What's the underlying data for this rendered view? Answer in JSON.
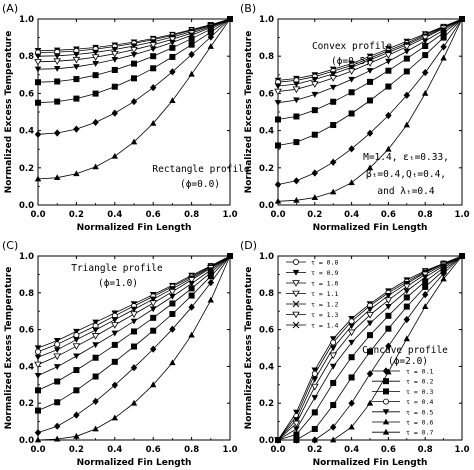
{
  "chart_data": [
    {
      "type": "line",
      "panel": "(A)",
      "xlabel": "Normalized Fin Length",
      "ylabel": "Normalized Excess Temperature",
      "xlim": [
        0,
        1
      ],
      "ylim": [
        0,
        1
      ],
      "ticks": [
        "0.0",
        "0.2",
        "0.4",
        "0.6",
        "0.8",
        "1.0"
      ],
      "annotations": [
        "Rectangle profile",
        "(ϕ=0.0)"
      ],
      "x": [
        0,
        0.1,
        0.2,
        0.3,
        0.4,
        0.5,
        0.6,
        0.7,
        0.8,
        0.9,
        1.0
      ],
      "series": [
        {
          "tau": 0.1,
          "values": [
            0.83,
            0.832,
            0.838,
            0.847,
            0.86,
            0.876,
            0.895,
            0.917,
            0.943,
            0.97,
            1.0
          ]
        },
        {
          "tau": 0.2,
          "values": [
            0.82,
            0.822,
            0.828,
            0.838,
            0.852,
            0.869,
            0.889,
            0.912,
            0.939,
            0.968,
            1.0
          ]
        },
        {
          "tau": 0.3,
          "values": [
            0.8,
            0.802,
            0.809,
            0.821,
            0.836,
            0.855,
            0.877,
            0.903,
            0.933,
            0.965,
            1.0
          ]
        },
        {
          "tau": 0.4,
          "values": [
            0.77,
            0.773,
            0.781,
            0.795,
            0.813,
            0.835,
            0.861,
            0.891,
            0.924,
            0.96,
            1.0
          ]
        },
        {
          "tau": 0.5,
          "values": [
            0.73,
            0.733,
            0.743,
            0.76,
            0.782,
            0.808,
            0.839,
            0.874,
            0.913,
            0.955,
            1.0
          ]
        },
        {
          "tau": 0.6,
          "values": [
            0.66,
            0.664,
            0.677,
            0.698,
            0.726,
            0.76,
            0.8,
            0.845,
            0.894,
            0.945,
            1.0
          ]
        },
        {
          "tau": 0.7,
          "values": [
            0.55,
            0.556,
            0.572,
            0.599,
            0.636,
            0.681,
            0.735,
            0.796,
            0.862,
            0.929,
            1.0
          ]
        },
        {
          "tau": 0.8,
          "values": [
            0.38,
            0.387,
            0.408,
            0.444,
            0.494,
            0.556,
            0.631,
            0.716,
            0.809,
            0.903,
            1.0
          ]
        },
        {
          "tau": 0.9,
          "values": [
            0.14,
            0.147,
            0.168,
            0.205,
            0.262,
            0.339,
            0.439,
            0.561,
            0.703,
            0.852,
            1.0
          ]
        }
      ]
    },
    {
      "type": "line",
      "panel": "(B)",
      "xlabel": "Normalized Fin Length",
      "ylabel": "Normalized Excess Temperature",
      "xlim": [
        0,
        1
      ],
      "ylim": [
        0,
        1
      ],
      "ticks": [
        "0.0",
        "0.2",
        "0.4",
        "0.6",
        "0.8",
        "1.0"
      ],
      "annotations": [
        "Convex profile",
        "(ϕ=0.5)",
        "M=1.4, εₜ=0.33,",
        "βₜ=0.4,Qₜ=0.4,",
        "and λₜ=0.4"
      ],
      "x": [
        0,
        0.1,
        0.2,
        0.3,
        0.4,
        0.5,
        0.6,
        0.7,
        0.8,
        0.9,
        1.0
      ],
      "series": [
        {
          "tau": 0.1,
          "values": [
            0.67,
            0.68,
            0.7,
            0.73,
            0.76,
            0.8,
            0.84,
            0.88,
            0.92,
            0.96,
            1.0
          ]
        },
        {
          "tau": 0.2,
          "values": [
            0.66,
            0.67,
            0.69,
            0.72,
            0.75,
            0.79,
            0.83,
            0.87,
            0.915,
            0.957,
            1.0
          ]
        },
        {
          "tau": 0.3,
          "values": [
            0.64,
            0.65,
            0.675,
            0.705,
            0.74,
            0.78,
            0.82,
            0.862,
            0.908,
            0.953,
            1.0
          ]
        },
        {
          "tau": 0.4,
          "values": [
            0.61,
            0.622,
            0.65,
            0.683,
            0.72,
            0.763,
            0.806,
            0.851,
            0.9,
            0.95,
            1.0
          ]
        },
        {
          "tau": 0.5,
          "values": [
            0.55,
            0.564,
            0.594,
            0.632,
            0.675,
            0.722,
            0.772,
            0.826,
            0.882,
            0.94,
            1.0
          ]
        },
        {
          "tau": 0.6,
          "values": [
            0.46,
            0.476,
            0.51,
            0.555,
            0.606,
            0.662,
            0.722,
            0.787,
            0.855,
            0.926,
            1.0
          ]
        },
        {
          "tau": 0.7,
          "values": [
            0.32,
            0.338,
            0.378,
            0.43,
            0.492,
            0.562,
            0.637,
            0.718,
            0.806,
            0.9,
            1.0
          ]
        },
        {
          "tau": 0.8,
          "values": [
            0.11,
            0.13,
            0.172,
            0.23,
            0.302,
            0.386,
            0.481,
            0.59,
            0.712,
            0.85,
            1.0
          ]
        },
        {
          "tau": 0.9,
          "values": [
            0.02,
            0.025,
            0.04,
            0.07,
            0.12,
            0.2,
            0.3,
            0.43,
            0.6,
            0.79,
            1.0
          ]
        }
      ]
    },
    {
      "type": "line",
      "panel": "(C)",
      "xlabel": "Normalized Fin Length",
      "ylabel": "Normalized Excess Temperature",
      "xlim": [
        0,
        1
      ],
      "ylim": [
        0,
        1
      ],
      "ticks": [
        "0.0",
        "0.2",
        "0.4",
        "0.6",
        "0.8",
        "1.0"
      ],
      "annotations": [
        "Triangle profile",
        "(ϕ=1.0)"
      ],
      "x": [
        0,
        0.1,
        0.2,
        0.3,
        0.4,
        0.5,
        0.6,
        0.7,
        0.8,
        0.9,
        1.0
      ],
      "series": [
        {
          "tau": 0.1,
          "values": [
            0.5,
            0.54,
            0.59,
            0.64,
            0.69,
            0.74,
            0.79,
            0.84,
            0.895,
            0.947,
            1.0
          ]
        },
        {
          "tau": 0.2,
          "values": [
            0.48,
            0.52,
            0.57,
            0.62,
            0.675,
            0.728,
            0.78,
            0.833,
            0.888,
            0.944,
            1.0
          ]
        },
        {
          "tau": 0.3,
          "values": [
            0.45,
            0.49,
            0.545,
            0.598,
            0.654,
            0.71,
            0.765,
            0.822,
            0.88,
            0.94,
            1.0
          ]
        },
        {
          "tau": 0.4,
          "values": [
            0.41,
            0.455,
            0.51,
            0.566,
            0.625,
            0.684,
            0.744,
            0.806,
            0.87,
            0.935,
            1.0
          ]
        },
        {
          "tau": 0.5,
          "values": [
            0.35,
            0.398,
            0.456,
            0.517,
            0.58,
            0.645,
            0.712,
            0.78,
            0.85,
            0.924,
            1.0
          ]
        },
        {
          "tau": 0.6,
          "values": [
            0.27,
            0.318,
            0.38,
            0.447,
            0.517,
            0.59,
            0.664,
            0.742,
            0.824,
            0.91,
            1.0
          ]
        },
        {
          "tau": 0.7,
          "values": [
            0.16,
            0.205,
            0.27,
            0.345,
            0.425,
            0.508,
            0.594,
            0.685,
            0.785,
            0.89,
            1.0
          ]
        },
        {
          "tau": 0.8,
          "values": [
            0.04,
            0.075,
            0.135,
            0.21,
            0.298,
            0.393,
            0.494,
            0.602,
            0.722,
            0.855,
            1.0
          ]
        },
        {
          "tau": 0.9,
          "values": [
            0.0,
            0.005,
            0.02,
            0.06,
            0.12,
            0.2,
            0.3,
            0.42,
            0.57,
            0.76,
            1.0
          ]
        }
      ]
    },
    {
      "type": "line",
      "panel": "(D)",
      "xlabel": "Normalized Fin Length",
      "ylabel": "Normalized Excess Temperature",
      "xlim": [
        0,
        1
      ],
      "ylim": [
        0,
        1
      ],
      "ticks": [
        "0.0",
        "0.2",
        "0.4",
        "0.6",
        "0.8",
        "1.0"
      ],
      "annotations": [
        "Concave profile",
        "(ϕ=2.0)"
      ],
      "legend_top": [
        "τ = 0.8",
        "τ = 0.9",
        "τ = 1.0",
        "τ = 1.1",
        "τ = 1.2",
        "τ = 1.3",
        "τ = 1.4"
      ],
      "legend_bottom": [
        "τ = 0.1",
        "τ = 0.2",
        "τ = 0.3",
        "τ = 0.4",
        "τ = 0.5",
        "τ = 0.6",
        "τ = 0.7"
      ],
      "x": [
        0,
        0.1,
        0.2,
        0.3,
        0.4,
        0.5,
        0.6,
        0.7,
        0.8,
        0.9,
        1.0
      ],
      "series": [
        {
          "tau": 0.1,
          "values": [
            0.0,
            0.15,
            0.38,
            0.55,
            0.66,
            0.74,
            0.81,
            0.87,
            0.92,
            0.96,
            1.0
          ]
        },
        {
          "tau": 0.2,
          "values": [
            0.0,
            0.13,
            0.36,
            0.53,
            0.645,
            0.73,
            0.8,
            0.86,
            0.915,
            0.96,
            1.0
          ]
        },
        {
          "tau": 0.3,
          "values": [
            0.0,
            0.11,
            0.33,
            0.5,
            0.62,
            0.71,
            0.785,
            0.85,
            0.91,
            0.958,
            1.0
          ]
        },
        {
          "tau": 0.4,
          "values": [
            0.0,
            0.09,
            0.29,
            0.46,
            0.585,
            0.68,
            0.76,
            0.835,
            0.9,
            0.953,
            1.0
          ]
        },
        {
          "tau": 0.5,
          "values": [
            0.0,
            0.06,
            0.23,
            0.4,
            0.53,
            0.635,
            0.725,
            0.81,
            0.885,
            0.946,
            1.0
          ]
        },
        {
          "tau": 0.6,
          "values": [
            0.0,
            0.03,
            0.15,
            0.31,
            0.45,
            0.57,
            0.675,
            0.775,
            0.862,
            0.936,
            1.0
          ]
        },
        {
          "tau": 0.7,
          "values": [
            0.0,
            0.0,
            0.06,
            0.19,
            0.34,
            0.48,
            0.605,
            0.725,
            0.832,
            0.922,
            1.0
          ]
        },
        {
          "tau": 0.8,
          "values": [
            0.0,
            0.0,
            0.0,
            0.07,
            0.2,
            0.36,
            0.51,
            0.655,
            0.79,
            0.905,
            1.0
          ]
        },
        {
          "tau": 0.9,
          "values": [
            0.0,
            0.0,
            0.0,
            0.0,
            0.07,
            0.2,
            0.37,
            0.55,
            0.725,
            0.875,
            1.0
          ]
        }
      ]
    }
  ]
}
